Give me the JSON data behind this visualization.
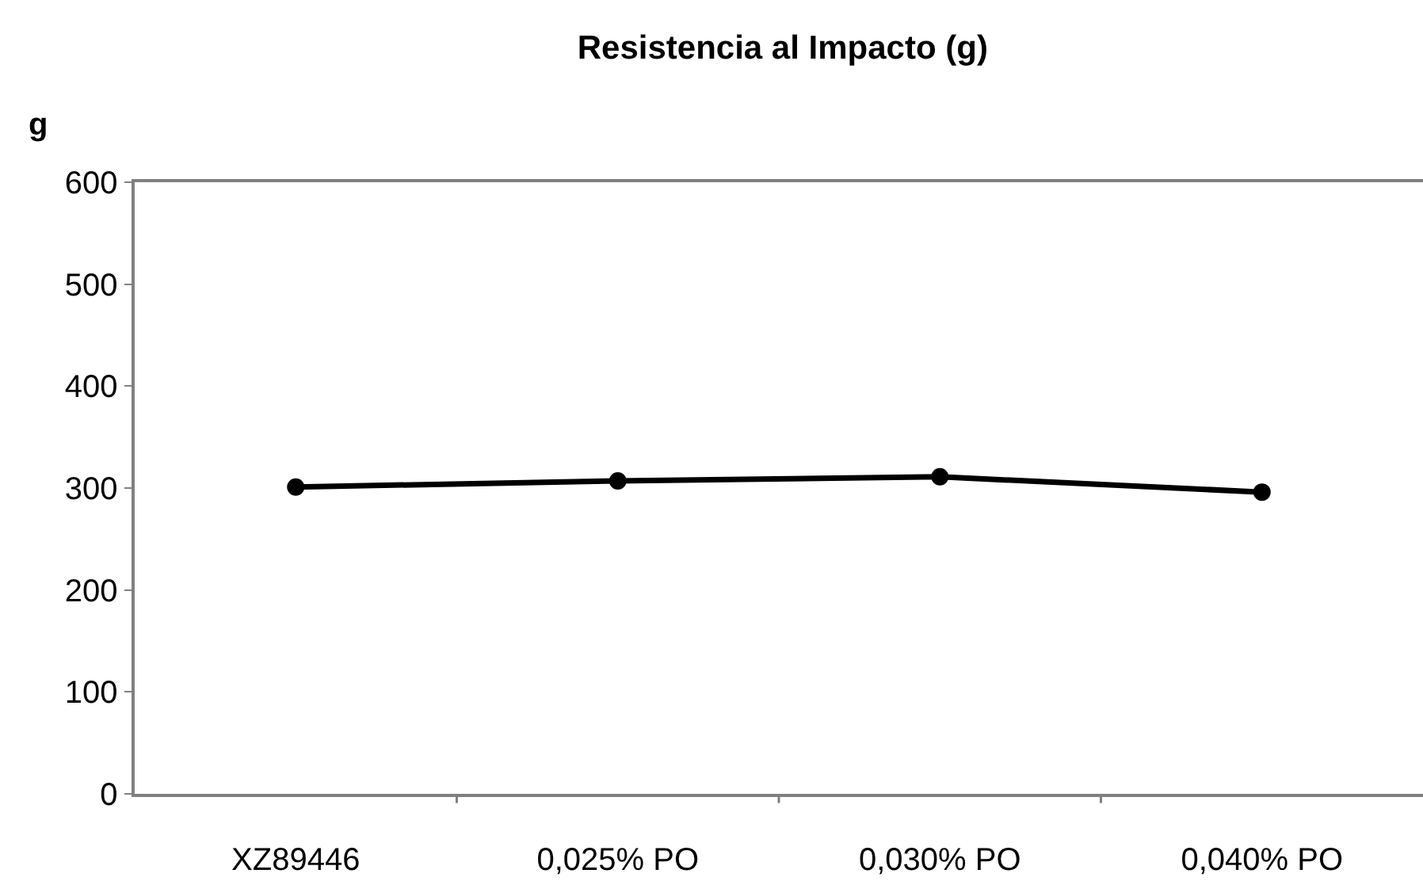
{
  "chart_data": {
    "type": "line",
    "title": "Resistencia al Impacto (g)",
    "ylabel": "g",
    "categories": [
      "XZ89446",
      "0,025% PO",
      "0,030% PO",
      "0,040% PO"
    ],
    "series": [
      {
        "color": "#000000",
        "values": [
          301,
          307,
          311,
          296
        ]
      }
    ],
    "ylim": [
      0,
      600
    ],
    "yticks": [
      0,
      100,
      200,
      300,
      400,
      500,
      600
    ],
    "legend": false,
    "marker": "circle",
    "line_style": "solid"
  }
}
